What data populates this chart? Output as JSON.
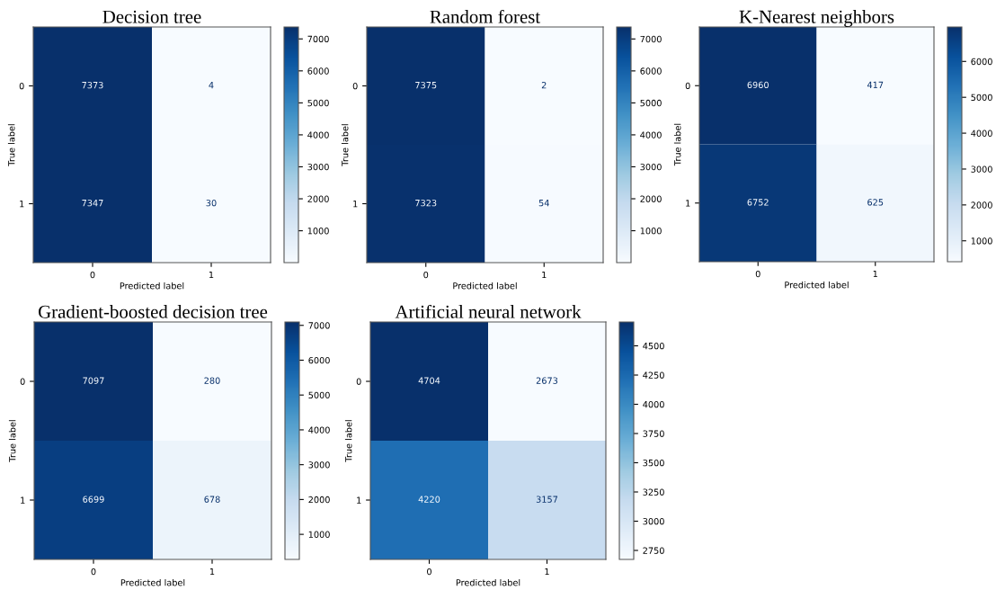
{
  "chart_data": [
    {
      "type": "heatmap",
      "title": "Decision tree",
      "xlabel": "Predicted label",
      "ylabel": "True label",
      "categories": [
        "0",
        "1"
      ],
      "y_categories": [
        "0",
        "1"
      ],
      "cells": [
        [
          7373,
          4
        ],
        [
          7347,
          30
        ]
      ],
      "data_labels": true,
      "clim": [
        4,
        7373
      ],
      "cticks": [
        1000,
        2000,
        3000,
        4000,
        5000,
        6000,
        7000
      ]
    },
    {
      "type": "heatmap",
      "title": "Random forest",
      "xlabel": "Predicted label",
      "ylabel": "True label",
      "categories": [
        "0",
        "1"
      ],
      "y_categories": [
        "0",
        "1"
      ],
      "cells": [
        [
          7375,
          2
        ],
        [
          7323,
          54
        ]
      ],
      "data_labels": true,
      "clim": [
        2,
        7375
      ],
      "cticks": [
        1000,
        2000,
        3000,
        4000,
        5000,
        6000,
        7000
      ]
    },
    {
      "type": "heatmap",
      "title": "K-Nearest neighbors",
      "xlabel": "Predicted label",
      "ylabel": "True label",
      "categories": [
        "0",
        "1"
      ],
      "y_categories": [
        "0",
        "1"
      ],
      "cells": [
        [
          6960,
          417
        ],
        [
          6752,
          625
        ]
      ],
      "data_labels": true,
      "clim": [
        417,
        6960
      ],
      "cticks": [
        1000,
        2000,
        3000,
        4000,
        5000,
        6000
      ]
    },
    {
      "type": "heatmap",
      "title": "Gradient-boosted decision tree",
      "xlabel": "Predicted label",
      "ylabel": "True label",
      "categories": [
        "0",
        "1"
      ],
      "y_categories": [
        "0",
        "1"
      ],
      "cells": [
        [
          7097,
          280
        ],
        [
          6699,
          678
        ]
      ],
      "data_labels": true,
      "clim": [
        280,
        7097
      ],
      "cticks": [
        1000,
        2000,
        3000,
        4000,
        5000,
        6000,
        7000
      ]
    },
    {
      "type": "heatmap",
      "title": "Artificial neural network",
      "xlabel": "Predicted label",
      "ylabel": "True label",
      "categories": [
        "0",
        "1"
      ],
      "y_categories": [
        "0",
        "1"
      ],
      "cells": [
        [
          4704,
          2673
        ],
        [
          4220,
          3157
        ]
      ],
      "data_labels": true,
      "clim": [
        2673,
        4704
      ],
      "cticks": [
        2750,
        3000,
        3250,
        3500,
        3750,
        4000,
        4250,
        4500
      ]
    }
  ]
}
